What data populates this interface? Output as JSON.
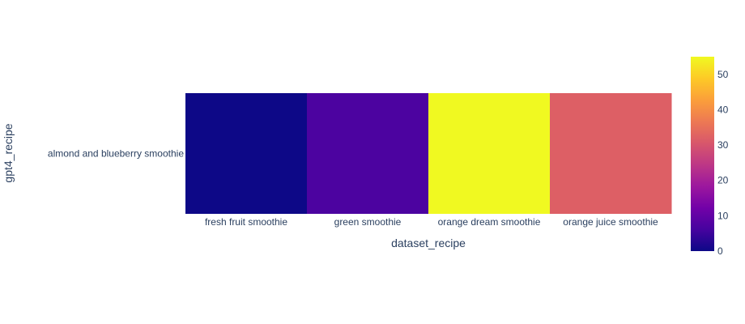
{
  "chart_data": {
    "type": "heatmap",
    "xlabel": "dataset_recipe",
    "ylabel": "gpt4_recipe",
    "x": [
      "fresh fruit smoothie",
      "green smoothie",
      "orange dream smoothie",
      "orange juice smoothie"
    ],
    "y": [
      "almond and blueberry smoothie"
    ],
    "z": [
      [
        0,
        7,
        55,
        32
      ]
    ],
    "colorscale": [
      "#0d0887",
      "#46039f",
      "#7201a8",
      "#9c179e",
      "#bd3786",
      "#d8576b",
      "#ed7953",
      "#fb9f3a",
      "#fdca26",
      "#f0f921"
    ],
    "zrange": [
      0,
      55
    ],
    "colorbar_ticks": [
      0,
      10,
      20,
      30,
      40,
      50
    ]
  }
}
